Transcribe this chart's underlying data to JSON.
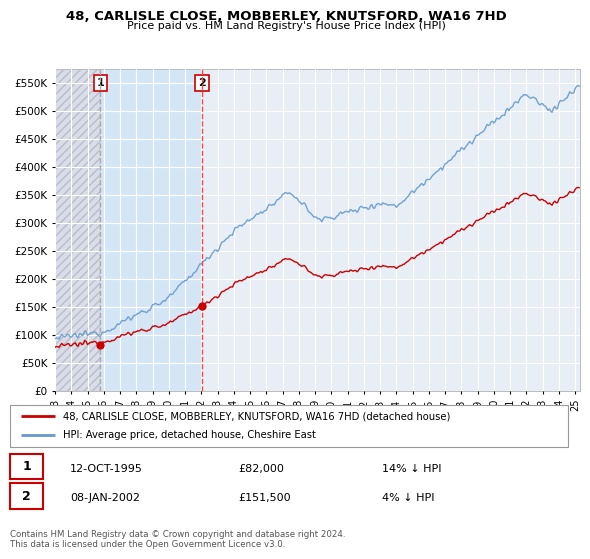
{
  "title": "48, CARLISLE CLOSE, MOBBERLEY, KNUTSFORD, WA16 7HD",
  "subtitle": "Price paid vs. HM Land Registry's House Price Index (HPI)",
  "legend_label_red": "48, CARLISLE CLOSE, MOBBERLEY, KNUTSFORD, WA16 7HD (detached house)",
  "legend_label_blue": "HPI: Average price, detached house, Cheshire East",
  "footer": "Contains HM Land Registry data © Crown copyright and database right 2024.\nThis data is licensed under the Open Government Licence v3.0.",
  "sale1": {
    "label": "1",
    "date": "12-OCT-1995",
    "price": 82000,
    "note": "14% ↓ HPI",
    "x": 1995.79
  },
  "sale2": {
    "label": "2",
    "date": "08-JAN-2002",
    "price": 151500,
    "note": "4% ↓ HPI",
    "x": 2002.04
  },
  "xlim": [
    1993.0,
    2025.3
  ],
  "ylim": [
    0,
    575000
  ],
  "yticks": [
    0,
    50000,
    100000,
    150000,
    200000,
    250000,
    300000,
    350000,
    400000,
    450000,
    500000,
    550000
  ],
  "xticks": [
    1993,
    1994,
    1995,
    1996,
    1997,
    1998,
    1999,
    2000,
    2001,
    2002,
    2003,
    2004,
    2005,
    2006,
    2007,
    2008,
    2009,
    2010,
    2011,
    2012,
    2013,
    2014,
    2015,
    2016,
    2017,
    2018,
    2019,
    2020,
    2021,
    2022,
    2023,
    2024,
    2025
  ],
  "background_color": "#ffffff",
  "plot_bg_color": "#e8eef5",
  "hatch_color": "#ffffff",
  "grid_color": "#ffffff",
  "hpi_color": "#6699cc",
  "price_color": "#cc0000",
  "shade_color": "#d0e4f7",
  "vline1_color": "#aaaaaa",
  "vline2_color": "#ff4444"
}
